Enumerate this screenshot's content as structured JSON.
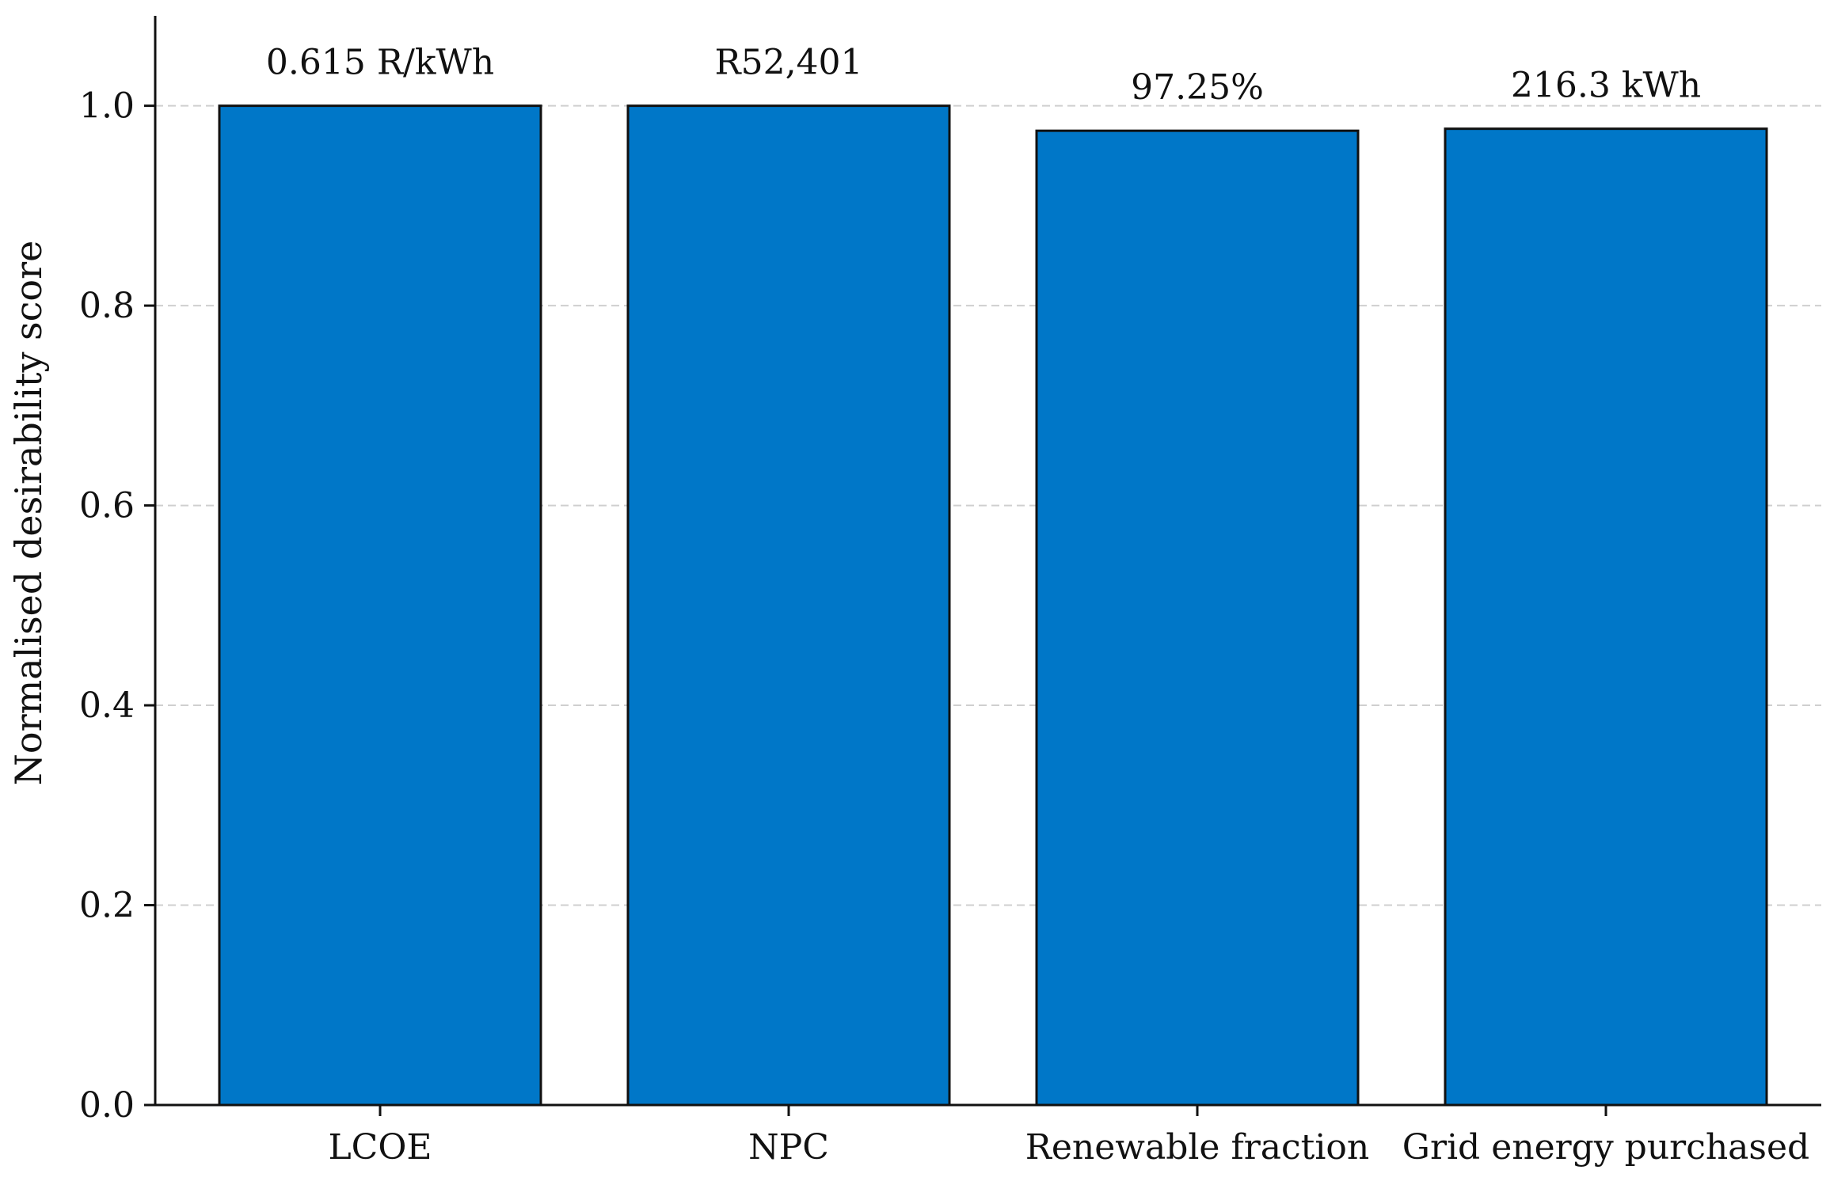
{
  "chart_data": {
    "type": "bar",
    "categories": [
      "LCOE",
      "NPC",
      "Renewable fraction",
      "Grid energy purchased"
    ],
    "values": [
      1.0,
      1.0,
      0.975,
      0.977
    ],
    "data_labels": [
      "0.615 R/kWh",
      "R52,401",
      "97.25%",
      "216.3 kWh"
    ],
    "xlabel": "",
    "ylabel": "Normalised desirability score",
    "ylim": [
      0,
      1.09
    ],
    "yticks": [
      0.0,
      0.2,
      0.4,
      0.6,
      0.8,
      1.0
    ],
    "ytick_labels": [
      "0.0",
      "0.2",
      "0.4",
      "0.6",
      "0.8",
      "1.0"
    ],
    "grid": "horizontal dashed",
    "bar_color": "#0077C8",
    "edge_color": "#111111"
  }
}
